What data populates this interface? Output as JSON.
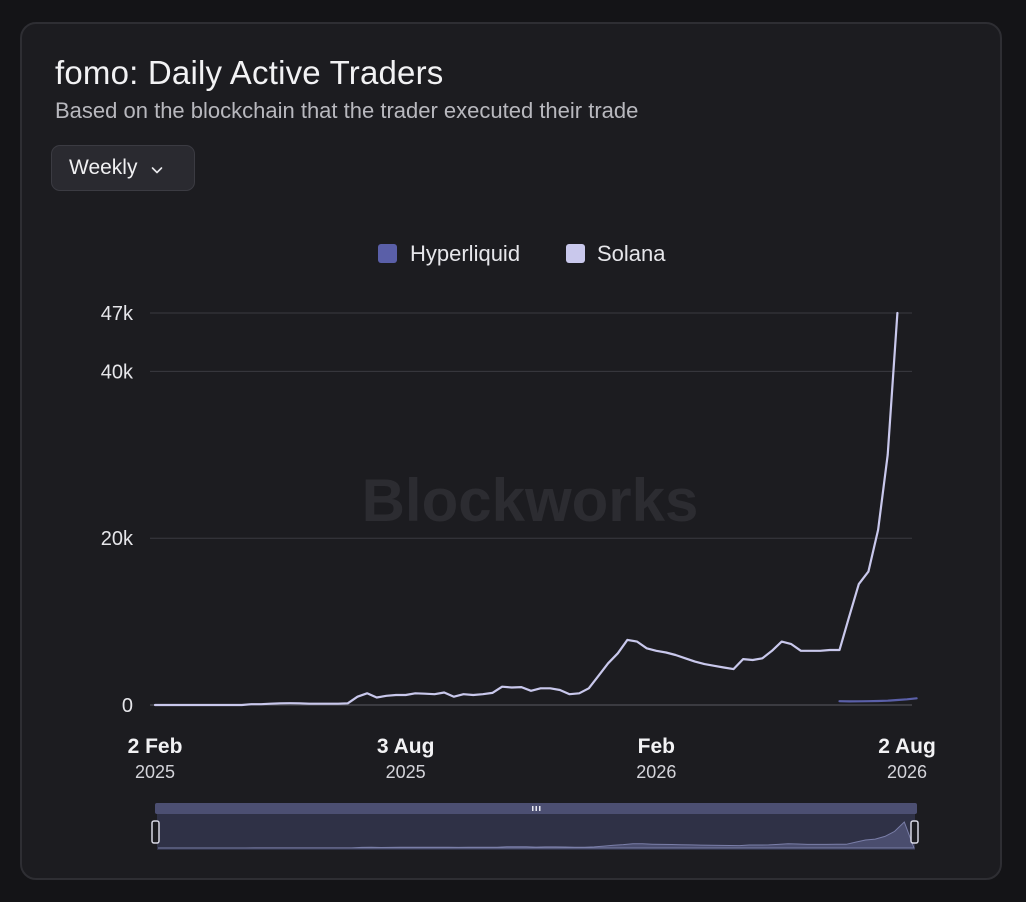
{
  "card": {
    "title": "fomo: Daily Active Traders",
    "subtitle": "Based on the blockchain that the trader executed their trade"
  },
  "controls": {
    "interval": {
      "selected": "Weekly",
      "icon": "chevron-down-icon"
    }
  },
  "watermark": "Blockworks",
  "colors": {
    "background": "#1c1c20",
    "hyperliquid": "#5a5fa8",
    "solana": "#c9c8ec",
    "grid": "#3a3a40"
  },
  "chart_data": {
    "type": "line",
    "y_ticks": [
      "0",
      "20k",
      "40k",
      "47k"
    ],
    "y_tick_values": [
      0,
      20000,
      40000,
      47000
    ],
    "ylim": [
      0,
      47000
    ],
    "x_ticks": [
      {
        "label": "2 Feb",
        "year": "2025",
        "index": 0
      },
      {
        "label": "3 Aug",
        "year": "2025",
        "index": 26
      },
      {
        "label": "Feb",
        "year": "2026",
        "index": 52
      },
      {
        "label": "2 Aug",
        "year": "2026",
        "index": 78
      }
    ],
    "x_interval": "weekly",
    "x_start": "2025-02-02",
    "x_end": "2026-08-02",
    "legend": {
      "position": "top-center"
    },
    "grid": true,
    "series": [
      {
        "name": "Hyperliquid",
        "start_index": 71,
        "values": [
          450,
          430,
          440,
          460,
          480,
          520,
          600,
          680,
          800
        ]
      },
      {
        "name": "Solana",
        "start_index": 0,
        "values": [
          0,
          0,
          0,
          0,
          0,
          0,
          0,
          0,
          0,
          0,
          100,
          100,
          150,
          200,
          220,
          200,
          150,
          150,
          150,
          150,
          200,
          1000,
          1400,
          900,
          1100,
          1200,
          1200,
          1400,
          1350,
          1300,
          1500,
          1000,
          1300,
          1200,
          1300,
          1450,
          2200,
          2100,
          2150,
          1700,
          2000,
          2000,
          1800,
          1300,
          1400,
          2000,
          3500,
          5000,
          6200,
          7800,
          7600,
          6800,
          6500,
          6300,
          6000,
          5600,
          5200,
          4900,
          4700,
          4500,
          4300,
          5500,
          5400,
          5600,
          6500,
          7600,
          7300,
          6500,
          6500,
          6500,
          6600,
          6600,
          10600,
          14500,
          16000,
          21000,
          30000,
          47000
        ]
      }
    ]
  }
}
